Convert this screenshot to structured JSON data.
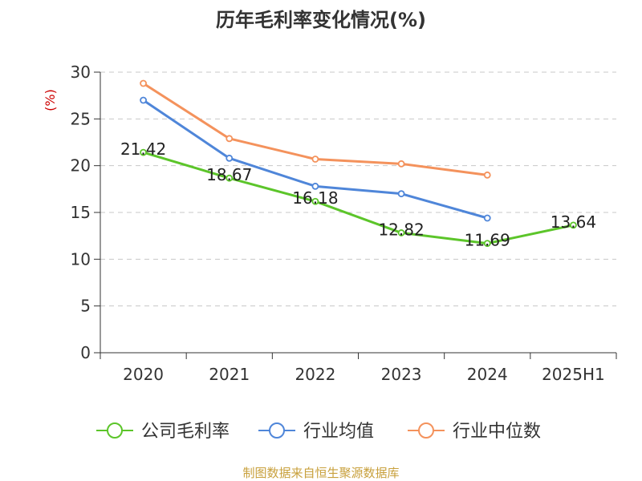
{
  "chart_data": {
    "type": "line",
    "title": "历年毛利率变化情况(%)",
    "ylabel": "(%)",
    "xlabel": "",
    "categories": [
      "2020",
      "2021",
      "2022",
      "2023",
      "2024",
      "2025H1"
    ],
    "ylim": [
      0,
      30
    ],
    "yticks": [
      0,
      5,
      10,
      15,
      20,
      25,
      30
    ],
    "grid": "horizontal-dashed",
    "legend_position": "bottom",
    "series": [
      {
        "name": "公司毛利率",
        "color": "#5cc52a",
        "values": [
          21.42,
          18.67,
          16.18,
          12.82,
          11.69,
          13.64
        ],
        "labels": [
          "21.42",
          "18.67",
          "16.18",
          "12.82",
          "11.69",
          "13.64"
        ]
      },
      {
        "name": "行业均值",
        "color": "#4f86d9",
        "values": [
          27.0,
          20.8,
          17.8,
          17.0,
          14.4,
          null
        ]
      },
      {
        "name": "行业中位数",
        "color": "#f4925c",
        "values": [
          28.8,
          22.9,
          20.7,
          20.2,
          19.0,
          null
        ]
      }
    ],
    "source": "制图数据来自恒生聚源数据库"
  }
}
